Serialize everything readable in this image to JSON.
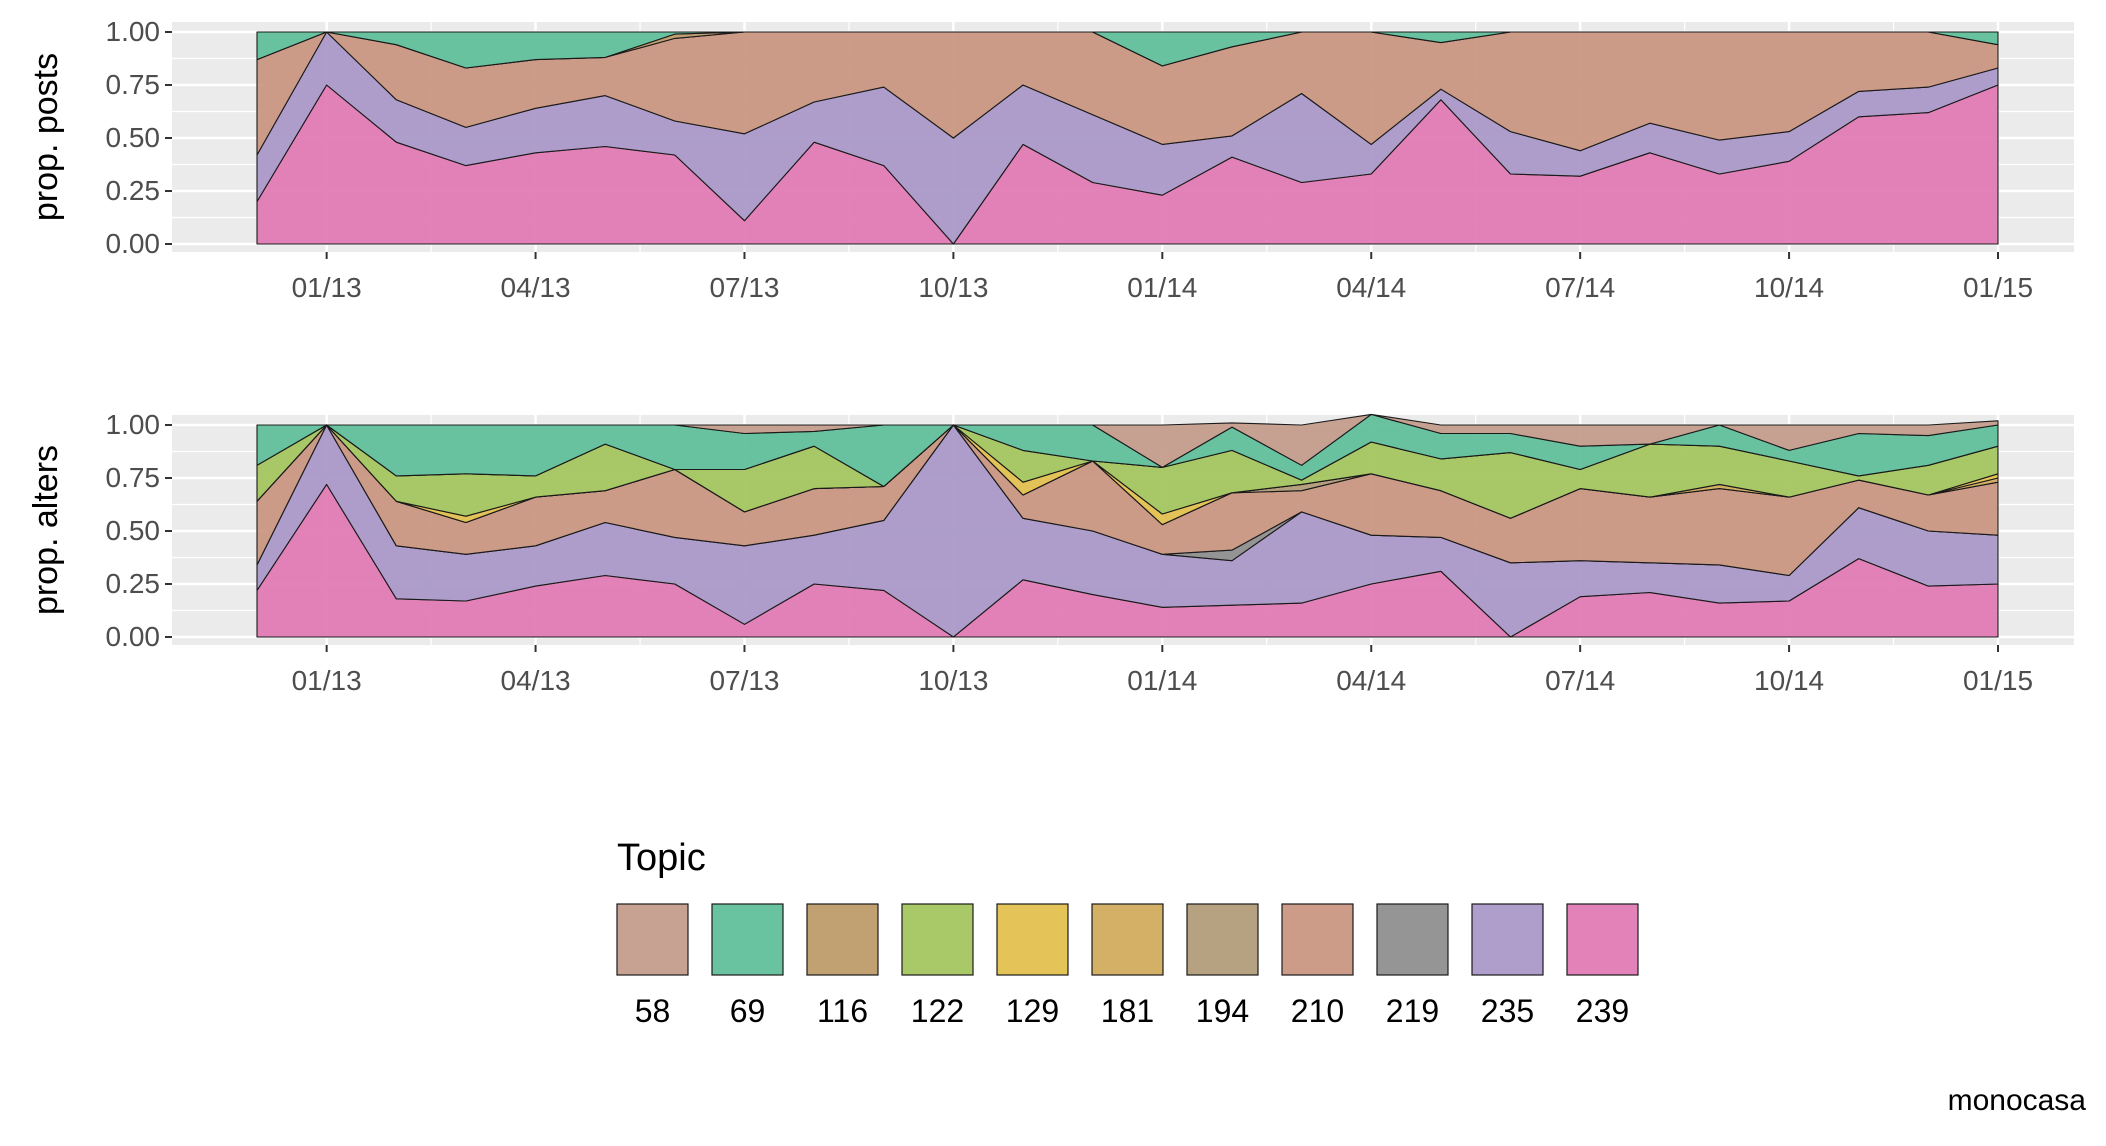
{
  "colors": {
    "58": "#c29a8a",
    "69": "#5cbd98",
    "116": "#bc9866",
    "122": "#a2c35a",
    "129": "#e2bf4b",
    "181": "#d0a959",
    "194": "#b09a75",
    "210": "#c9947e",
    "219": "#8c8c8c",
    "235": "#a896c7",
    "239": "#e077b3",
    "panel_bg": "#ebebeb",
    "grid": "#ffffff"
  },
  "chart_data": [
    {
      "type": "area",
      "stacked": true,
      "ylabel": "prop. posts",
      "xlabel": "",
      "x_ticks": [
        "01/13",
        "04/13",
        "07/13",
        "10/13",
        "01/14",
        "04/14",
        "07/14",
        "10/14",
        "01/15"
      ],
      "y_ticks": [
        "0.00",
        "0.25",
        "0.50",
        "0.75",
        "1.00"
      ],
      "ylim": [
        0,
        1
      ],
      "x": [
        "12/12",
        "01/13",
        "02/13",
        "03/13",
        "04/13",
        "05/13",
        "06/13",
        "07/13",
        "08/13",
        "09/13",
        "10/13",
        "11/13",
        "12/13",
        "01/14",
        "02/14",
        "03/14",
        "04/14",
        "05/14",
        "06/14",
        "07/14",
        "08/14",
        "09/14",
        "10/14",
        "11/14",
        "12/14",
        "01/15"
      ],
      "series": [
        {
          "name": "239",
          "values": [
            0.2,
            0.75,
            0.48,
            0.37,
            0.43,
            0.46,
            0.42,
            0.11,
            0.48,
            0.37,
            0.0,
            0.47,
            0.29,
            0.23,
            0.41,
            0.29,
            0.33,
            0.68,
            0.33,
            0.32,
            0.43,
            0.33,
            0.39,
            0.6,
            0.62,
            0.75
          ]
        },
        {
          "name": "235",
          "values": [
            0.22,
            0.25,
            0.2,
            0.18,
            0.21,
            0.24,
            0.16,
            0.41,
            0.19,
            0.37,
            0.5,
            0.28,
            0.32,
            0.24,
            0.1,
            0.42,
            0.14,
            0.05,
            0.2,
            0.12,
            0.14,
            0.16,
            0.14,
            0.12,
            0.12,
            0.08
          ]
        },
        {
          "name": "210",
          "values": [
            0.45,
            0.0,
            0.26,
            0.28,
            0.23,
            0.18,
            0.39,
            0.48,
            0.33,
            0.26,
            0.5,
            0.25,
            0.39,
            0.37,
            0.42,
            0.29,
            0.53,
            0.22,
            0.47,
            0.56,
            0.43,
            0.51,
            0.47,
            0.28,
            0.26,
            0.11
          ]
        },
        {
          "name": "116",
          "values": [
            0.0,
            0.0,
            0.0,
            0.0,
            0.0,
            0.0,
            0.02,
            0.0,
            0.0,
            0.0,
            0.0,
            0.0,
            0.0,
            0.0,
            0.0,
            0.0,
            0.0,
            0.0,
            0.0,
            0.0,
            0.0,
            0.0,
            0.0,
            0.0,
            0.0,
            0.0
          ]
        },
        {
          "name": "69",
          "values": [
            0.13,
            0.0,
            0.06,
            0.17,
            0.13,
            0.12,
            0.01,
            0.0,
            0.0,
            0.0,
            0.0,
            0.0,
            0.0,
            0.16,
            0.07,
            0.0,
            0.0,
            0.05,
            0.0,
            0.0,
            0.0,
            0.0,
            0.0,
            0.0,
            0.0,
            0.06
          ]
        }
      ]
    },
    {
      "type": "area",
      "stacked": true,
      "ylabel": "prop. alters",
      "xlabel": "",
      "x_ticks": [
        "01/13",
        "04/13",
        "07/13",
        "10/13",
        "01/14",
        "04/14",
        "07/14",
        "10/14",
        "01/15"
      ],
      "y_ticks": [
        "0.00",
        "0.25",
        "0.50",
        "0.75",
        "1.00"
      ],
      "ylim": [
        0,
        1
      ],
      "x": [
        "12/12",
        "01/13",
        "02/13",
        "03/13",
        "04/13",
        "05/13",
        "06/13",
        "07/13",
        "08/13",
        "09/13",
        "10/13",
        "11/13",
        "12/13",
        "01/14",
        "02/14",
        "03/14",
        "04/14",
        "05/14",
        "06/14",
        "07/14",
        "08/14",
        "09/14",
        "10/14",
        "11/14",
        "12/14",
        "01/15"
      ],
      "series": [
        {
          "name": "239",
          "values": [
            0.22,
            0.72,
            0.18,
            0.17,
            0.24,
            0.29,
            0.25,
            0.06,
            0.25,
            0.22,
            0.0,
            0.27,
            0.2,
            0.14,
            0.15,
            0.16,
            0.25,
            0.31,
            0.0,
            0.19,
            0.21,
            0.16,
            0.17,
            0.37,
            0.24,
            0.25
          ]
        },
        {
          "name": "235",
          "values": [
            0.12,
            0.28,
            0.25,
            0.22,
            0.19,
            0.25,
            0.22,
            0.37,
            0.23,
            0.33,
            1.0,
            0.29,
            0.3,
            0.25,
            0.21,
            0.43,
            0.23,
            0.16,
            0.35,
            0.17,
            0.14,
            0.18,
            0.12,
            0.24,
            0.26,
            0.23
          ]
        },
        {
          "name": "219",
          "values": [
            0.0,
            0.0,
            0.0,
            0.0,
            0.0,
            0.0,
            0.0,
            0.0,
            0.0,
            0.0,
            0.0,
            0.0,
            0.0,
            0.0,
            0.05,
            0.0,
            0.0,
            0.0,
            0.0,
            0.0,
            0.0,
            0.0,
            0.0,
            0.0,
            0.0,
            0.0
          ]
        },
        {
          "name": "210",
          "values": [
            0.3,
            0.0,
            0.21,
            0.15,
            0.23,
            0.15,
            0.32,
            0.16,
            0.22,
            0.16,
            0.0,
            0.11,
            0.33,
            0.14,
            0.27,
            0.1,
            0.29,
            0.22,
            0.21,
            0.34,
            0.31,
            0.36,
            0.37,
            0.13,
            0.17,
            0.25
          ]
        },
        {
          "name": "194",
          "values": [
            0.0,
            0.0,
            0.0,
            0.0,
            0.0,
            0.0,
            0.0,
            0.0,
            0.0,
            0.0,
            0.0,
            0.0,
            0.0,
            0.0,
            0.0,
            0.03,
            0.0,
            0.0,
            0.0,
            0.0,
            0.0,
            0.0,
            0.0,
            0.0,
            0.0,
            0.0
          ]
        },
        {
          "name": "181",
          "values": [
            0.0,
            0.0,
            0.0,
            0.0,
            0.0,
            0.0,
            0.0,
            0.0,
            0.0,
            0.0,
            0.0,
            0.0,
            0.0,
            0.0,
            0.0,
            0.0,
            0.0,
            0.0,
            0.0,
            0.0,
            0.0,
            0.02,
            0.0,
            0.0,
            0.0,
            0.02
          ]
        },
        {
          "name": "129",
          "values": [
            0.0,
            0.0,
            0.0,
            0.03,
            0.0,
            0.0,
            0.0,
            0.0,
            0.0,
            0.0,
            0.0,
            0.06,
            0.0,
            0.05,
            0.0,
            0.0,
            0.0,
            0.0,
            0.0,
            0.0,
            0.0,
            0.0,
            0.0,
            0.0,
            0.0,
            0.02
          ]
        },
        {
          "name": "122",
          "values": [
            0.17,
            0.0,
            0.12,
            0.2,
            0.1,
            0.22,
            0.0,
            0.2,
            0.2,
            0.0,
            0.0,
            0.15,
            0.0,
            0.22,
            0.2,
            0.02,
            0.15,
            0.15,
            0.31,
            0.09,
            0.25,
            0.18,
            0.17,
            0.02,
            0.14,
            0.13
          ]
        },
        {
          "name": "116",
          "values": [
            0.0,
            0.0,
            0.0,
            0.0,
            0.0,
            0.0,
            0.0,
            0.0,
            0.0,
            0.0,
            0.0,
            0.0,
            0.0,
            0.0,
            0.0,
            0.0,
            0.0,
            0.0,
            0.0,
            0.0,
            0.0,
            0.0,
            0.0,
            0.0,
            0.0,
            0.0
          ]
        },
        {
          "name": "69",
          "values": [
            0.19,
            0.0,
            0.24,
            0.23,
            0.24,
            0.09,
            0.21,
            0.17,
            0.07,
            0.29,
            0.0,
            0.12,
            0.17,
            0.0,
            0.11,
            0.07,
            0.13,
            0.12,
            0.09,
            0.11,
            0.0,
            0.1,
            0.05,
            0.2,
            0.14,
            0.1
          ]
        },
        {
          "name": "58",
          "values": [
            0.0,
            0.0,
            0.0,
            0.0,
            0.0,
            0.0,
            0.0,
            0.04,
            0.03,
            0.0,
            0.0,
            0.0,
            0.0,
            0.2,
            0.02,
            0.19,
            0.0,
            0.04,
            0.04,
            0.1,
            0.09,
            0.0,
            0.12,
            0.04,
            0.05,
            0.02
          ]
        }
      ]
    }
  ],
  "legend": {
    "title": "Topic",
    "items": [
      "58",
      "69",
      "116",
      "122",
      "129",
      "181",
      "194",
      "210",
      "219",
      "235",
      "239"
    ]
  },
  "caption": "monocasa"
}
